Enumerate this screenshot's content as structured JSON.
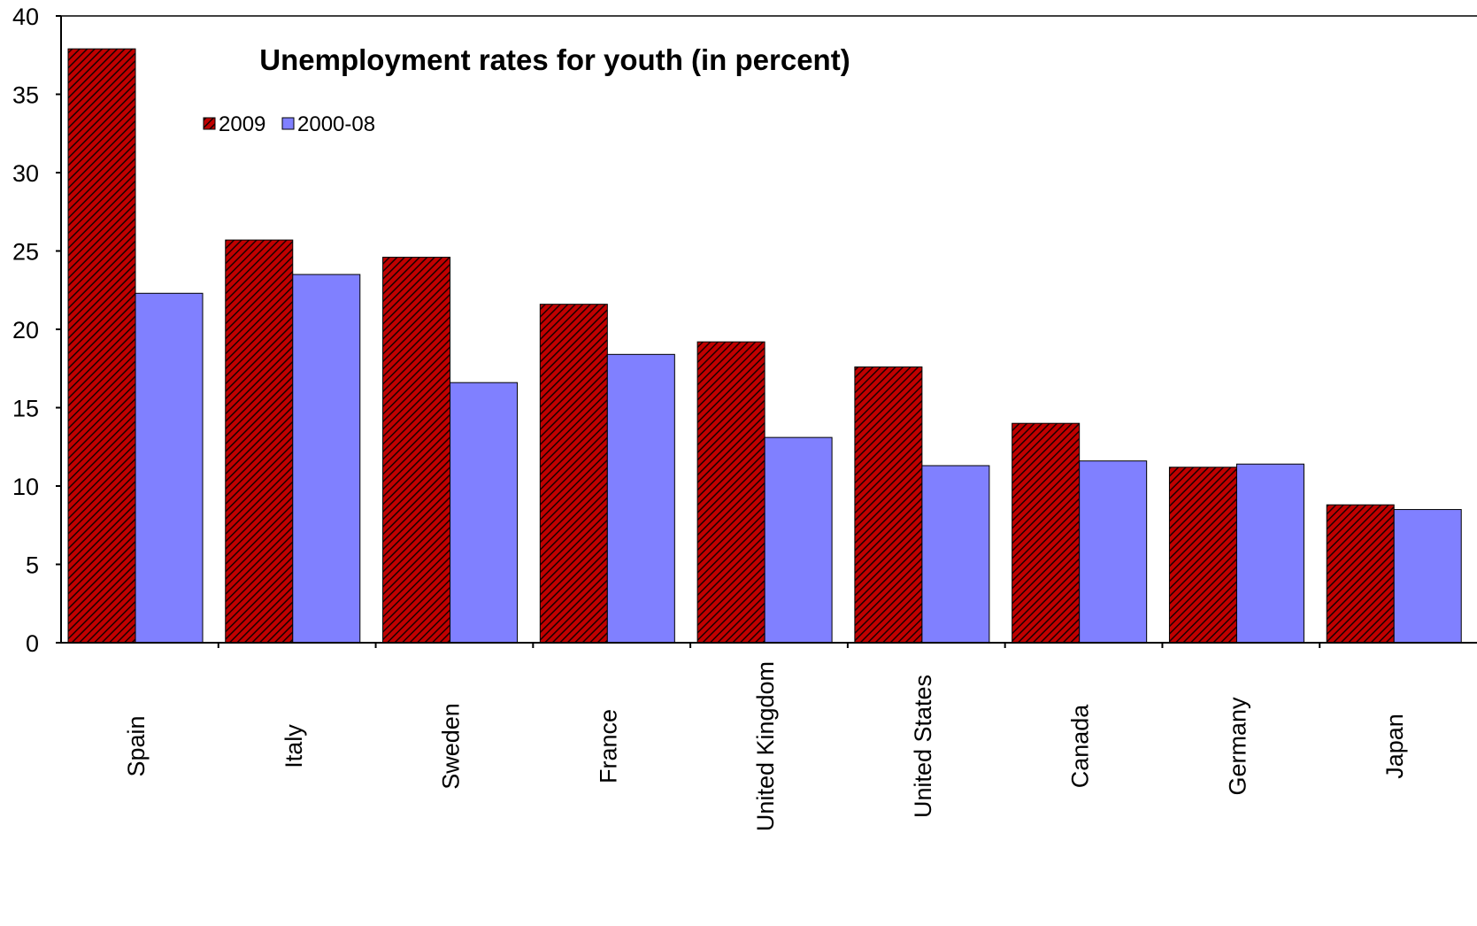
{
  "chart_data": {
    "type": "bar",
    "title": "Unemployment rates for youth (in percent)",
    "xlabel": "",
    "ylabel": "",
    "ylim": [
      0,
      40
    ],
    "yticks": [
      "0",
      "5",
      "10",
      "15",
      "20",
      "25",
      "30",
      "35",
      "40"
    ],
    "categories": [
      "Spain",
      "Italy",
      "Sweden",
      "France",
      "United Kingdom",
      "United States",
      "Canada",
      "Germany",
      "Japan"
    ],
    "series": [
      {
        "name": "2009",
        "color": "#c00000",
        "pattern": "dark diagonal hatch",
        "values": [
          37.9,
          25.7,
          24.6,
          21.6,
          19.2,
          17.6,
          14.0,
          11.2,
          8.8
        ]
      },
      {
        "name": "2000-08",
        "color": "#8080ff",
        "values": [
          22.3,
          23.5,
          16.6,
          18.4,
          13.1,
          11.3,
          11.6,
          11.4,
          8.5
        ]
      }
    ],
    "grid": false,
    "legend_position": "top-left"
  }
}
